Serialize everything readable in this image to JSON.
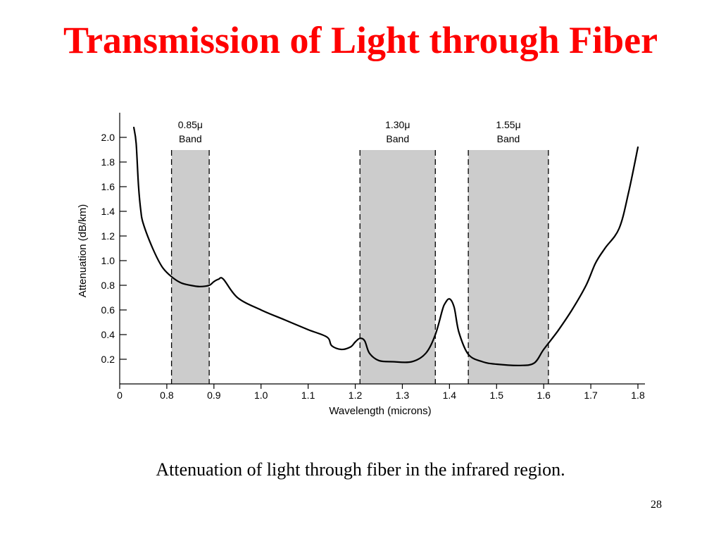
{
  "slide": {
    "title": "Transmission of Light through Fiber",
    "caption": "Attenuation of light through fiber in the infrared region.",
    "slide_number": "28"
  },
  "colors": {
    "title": "#ff0000",
    "band_fill": "#cccccc",
    "curve": "#000000"
  },
  "chart_data": {
    "type": "line",
    "title": "",
    "xlabel": "Wavelength (microns)",
    "ylabel": "Attenuation (dB/km)",
    "xlim": [
      0.7,
      1.8
    ],
    "ylim": [
      0,
      2.1
    ],
    "x_axis_break": true,
    "x_ticks": [
      {
        "value": 0.7,
        "label": "0"
      },
      {
        "value": 0.8,
        "label": "0.8"
      },
      {
        "value": 0.9,
        "label": "0.9"
      },
      {
        "value": 1.0,
        "label": "1.0"
      },
      {
        "value": 1.1,
        "label": "1.1"
      },
      {
        "value": 1.2,
        "label": "1.2"
      },
      {
        "value": 1.3,
        "label": "1.3"
      },
      {
        "value": 1.4,
        "label": "1.4"
      },
      {
        "value": 1.5,
        "label": "1.5"
      },
      {
        "value": 1.6,
        "label": "1.6"
      },
      {
        "value": 1.7,
        "label": "1.7"
      },
      {
        "value": 1.8,
        "label": "1.8"
      }
    ],
    "y_ticks": [
      {
        "value": 0.2,
        "label": "0.2"
      },
      {
        "value": 0.4,
        "label": "0.4"
      },
      {
        "value": 0.6,
        "label": "0.6"
      },
      {
        "value": 0.8,
        "label": "0.8"
      },
      {
        "value": 1.0,
        "label": "1.0"
      },
      {
        "value": 1.2,
        "label": "1.2"
      },
      {
        "value": 1.4,
        "label": "1.4"
      },
      {
        "value": 1.6,
        "label": "1.6"
      },
      {
        "value": 1.8,
        "label": "1.8"
      },
      {
        "value": 2.0,
        "label": "2.0"
      }
    ],
    "bands": [
      {
        "line1": "0.85μ",
        "line2": "Band",
        "x_start": 0.81,
        "x_end": 0.89
      },
      {
        "line1": "1.30μ",
        "line2": "Band",
        "x_start": 1.21,
        "x_end": 1.37
      },
      {
        "line1": "1.55μ",
        "line2": "Band",
        "x_start": 1.44,
        "x_end": 1.61
      }
    ],
    "series": [
      {
        "x": [
          0.73,
          0.735,
          0.74,
          0.745,
          0.75,
          0.77,
          0.79,
          0.81,
          0.83,
          0.85,
          0.87,
          0.89,
          0.9,
          0.91,
          0.92,
          0.95,
          1.0,
          1.05,
          1.1,
          1.14,
          1.15,
          1.17,
          1.19,
          1.2,
          1.21,
          1.22,
          1.23,
          1.25,
          1.28,
          1.32,
          1.35,
          1.37,
          1.385,
          1.39,
          1.4,
          1.41,
          1.42,
          1.44,
          1.47,
          1.5,
          1.55,
          1.58,
          1.6,
          1.63,
          1.66,
          1.69,
          1.71,
          1.73,
          1.76,
          1.78,
          1.8
        ],
        "y": [
          2.08,
          1.95,
          1.6,
          1.4,
          1.3,
          1.1,
          0.95,
          0.87,
          0.82,
          0.8,
          0.79,
          0.8,
          0.83,
          0.85,
          0.85,
          0.7,
          0.6,
          0.52,
          0.44,
          0.38,
          0.31,
          0.28,
          0.3,
          0.34,
          0.37,
          0.35,
          0.25,
          0.19,
          0.18,
          0.18,
          0.25,
          0.4,
          0.6,
          0.65,
          0.69,
          0.62,
          0.42,
          0.24,
          0.18,
          0.16,
          0.15,
          0.17,
          0.28,
          0.43,
          0.6,
          0.8,
          0.98,
          1.1,
          1.26,
          1.55,
          1.92
        ]
      }
    ],
    "grid": false,
    "legend": "none"
  }
}
